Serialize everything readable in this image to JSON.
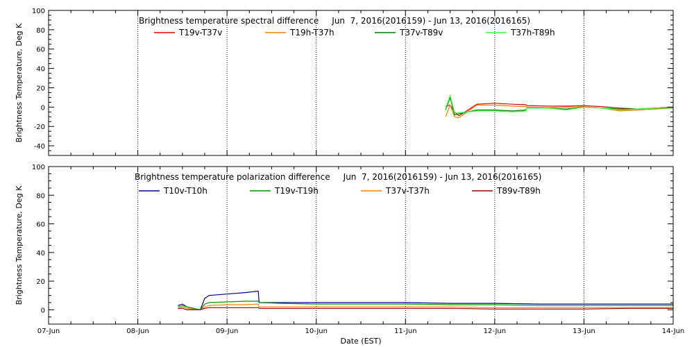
{
  "chart_data": [
    {
      "type": "line",
      "title": "Brightness temperature spectral difference     Jun  7, 2016(2016159) - Jun 13, 2016(2016165)",
      "ylabel": "Brightness Temperature, Deg K",
      "xlabel": "",
      "ylim": [
        -50,
        100
      ],
      "yticks": [
        -40,
        -20,
        0,
        20,
        40,
        60,
        80,
        100
      ],
      "xlim": [
        0,
        7
      ],
      "xticks": [
        0,
        1,
        2,
        3,
        4,
        5,
        6,
        7
      ],
      "xtick_labels": [],
      "grid": "vertical dotted at day boundaries",
      "series": [
        {
          "name": "T19v-T37v",
          "color": "#e00000",
          "x": [
            4.45,
            4.5,
            4.55,
            4.6,
            4.8,
            5.0,
            5.2,
            5.35,
            5.36,
            5.6,
            5.8,
            6.0,
            6.2,
            6.4,
            6.6,
            6.8,
            7.0
          ],
          "y": [
            1,
            2,
            -5,
            -9,
            3,
            4,
            3,
            2.5,
            1.5,
            1,
            1,
            1.5,
            0.5,
            -1,
            -2,
            -1,
            0
          ]
        },
        {
          "name": "T19h-T37h",
          "color": "#ff7f00",
          "x": [
            4.45,
            4.5,
            4.55,
            4.6,
            4.8,
            5.0,
            5.2,
            5.35,
            5.36,
            5.6,
            5.8,
            6.0,
            6.2,
            6.4,
            6.6,
            6.8,
            7.0
          ],
          "y": [
            -10,
            2,
            -10,
            -11,
            2,
            2,
            1,
            0.5,
            0,
            -0.5,
            0,
            0.5,
            -1,
            -4,
            -3,
            -2,
            -1
          ]
        },
        {
          "name": "T37v-T89v",
          "color": "#007a00",
          "x": [
            4.45,
            4.5,
            4.55,
            4.6,
            4.8,
            5.0,
            5.2,
            5.35,
            5.36,
            5.6,
            5.8,
            6.0,
            6.2,
            6.4,
            6.6,
            6.8,
            7.0
          ],
          "y": [
            -3,
            10,
            -8,
            -7,
            -3,
            -3,
            -4,
            -3,
            -1,
            -1,
            -2,
            0,
            -1,
            -2,
            -2,
            -1,
            -1
          ]
        },
        {
          "name": "T37h-T89h",
          "color": "#33ff33",
          "x": [
            4.45,
            4.5,
            4.55,
            4.6,
            4.8,
            5.0,
            5.2,
            5.35,
            5.36,
            5.6,
            5.8,
            6.0,
            6.2,
            6.4,
            6.6,
            6.8,
            7.0
          ],
          "y": [
            -2,
            12,
            -6,
            -6,
            -4,
            -4,
            -5,
            -4,
            -1,
            -1,
            -3,
            0,
            -1,
            -3,
            -2,
            -1,
            -1
          ]
        }
      ]
    },
    {
      "type": "line",
      "title": "Brightness temperature polarization difference     Jun  7, 2016(2016159) - Jun 13, 2016(2016165)",
      "ylabel": "Brightness Temperature, Deg K",
      "xlabel": "Date (EST)",
      "ylim": [
        -10,
        100
      ],
      "yticks": [
        0,
        20,
        40,
        60,
        80,
        100
      ],
      "xlim": [
        0,
        7
      ],
      "xticks": [
        0,
        1,
        2,
        3,
        4,
        5,
        6,
        7
      ],
      "xtick_labels": [
        "07-Jun",
        "08-Jun",
        "09-Jun",
        "10-Jun",
        "11-Jun",
        "12-Jun",
        "13-Jun",
        "14-Jun"
      ],
      "grid": "vertical dotted at day boundaries",
      "series": [
        {
          "name": "T10v-T10h",
          "color": "#000099",
          "x": [
            1.45,
            1.5,
            1.55,
            1.7,
            1.75,
            1.8,
            2.0,
            2.2,
            2.35,
            2.36,
            2.6,
            3.0,
            3.5,
            4.0,
            4.5,
            5.0,
            5.5,
            6.0,
            6.5,
            7.0
          ],
          "y": [
            3,
            4,
            2,
            0,
            8,
            10,
            11,
            12,
            13,
            5,
            5,
            5,
            5,
            5,
            4.5,
            4.5,
            4,
            4,
            4,
            4
          ]
        },
        {
          "name": "T19v-T19h",
          "color": "#009900",
          "x": [
            1.45,
            1.5,
            1.55,
            1.7,
            1.75,
            1.8,
            2.0,
            2.2,
            2.35,
            2.36,
            2.6,
            3.0,
            3.5,
            4.0,
            4.5,
            5.0,
            5.5,
            6.0,
            6.5,
            7.0
          ],
          "y": [
            2,
            3,
            2,
            0,
            4,
            5,
            5.5,
            6,
            6,
            5,
            4.5,
            4,
            4,
            4,
            3.5,
            3.5,
            3,
            3,
            3,
            3
          ]
        },
        {
          "name": "T37v-T37h",
          "color": "#ff7f00",
          "x": [
            1.45,
            1.5,
            1.55,
            1.7,
            1.75,
            1.8,
            2.0,
            2.2,
            2.35,
            2.36,
            2.6,
            3.0,
            3.5,
            4.0,
            4.5,
            5.0,
            5.5,
            6.0,
            6.5,
            7.0
          ],
          "y": [
            1,
            2,
            1,
            0,
            2,
            3,
            3.5,
            3.5,
            4,
            2,
            2,
            2,
            2,
            2,
            2,
            1.5,
            1.5,
            1.5,
            1.5,
            1.5
          ]
        },
        {
          "name": "T89v-T89h",
          "color": "#990000",
          "x": [
            1.45,
            1.5,
            1.55,
            1.7,
            1.75,
            1.8,
            2.0,
            2.2,
            2.35,
            2.36,
            2.6,
            3.0,
            3.5,
            4.0,
            4.5,
            5.0,
            5.5,
            6.0,
            6.5,
            7.0
          ],
          "y": [
            1,
            1,
            0,
            0,
            1,
            1.5,
            1.5,
            1.5,
            1.5,
            1,
            1,
            1,
            1,
            1,
            1,
            0.5,
            0.5,
            0.5,
            1,
            1
          ]
        }
      ]
    }
  ]
}
